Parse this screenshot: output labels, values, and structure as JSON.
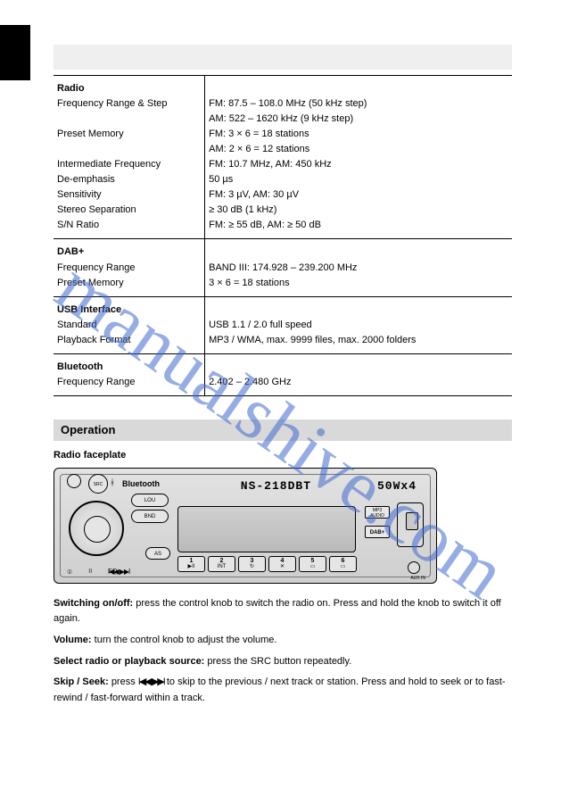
{
  "watermark": "manualshive.com",
  "spec_rows": [
    {
      "left_bold": "Radio",
      "left_rest": "\nFrequency Range & Step\n\nPreset Memory\n\nIntermediate Frequency\nDe-emphasis\nSensitivity\nStereo Separation\nS/N Ratio",
      "right": "\nFM: 87.5 – 108.0 MHz (50 kHz step)\nAM: 522 – 1620 kHz (9 kHz step)\nFM: 3 × 6 = 18 stations\nAM: 2 × 6 = 12 stations\nFM: 10.7 MHz, AM: 450 kHz\n50 µs\nFM: 3 µV, AM: 30 µV\n≥ 30 dB (1 kHz)\nFM: ≥ 55 dB, AM: ≥ 50 dB"
    },
    {
      "left_bold": "DAB+",
      "left_rest": "\nFrequency Range\nPreset Memory",
      "right": "\nBAND III: 174.928 – 239.200 MHz\n3 × 6 = 18 stations"
    },
    {
      "left_bold": "USB Interface",
      "left_rest": "\nStandard\nPlayback Format",
      "right": "\nUSB 1.1 / 2.0 full speed\nMP3 / WMA, max. 9999 files, max. 2000 folders"
    },
    {
      "left_bold": "Bluetooth",
      "left_rest": "\nFrequency Range",
      "right": "\n2.402 – 2.480 GHz"
    }
  ],
  "section_title": "Operation",
  "section_sub": "Radio faceplate",
  "radio": {
    "bt": "Bluetooth",
    "model": "NS-218DBT",
    "power": "50Wx4",
    "src": "SRC",
    "sidekeys": [
      "LOU",
      "BND"
    ],
    "as": "AS",
    "mp3": "MP3\nAUDIO",
    "dab": "DAB+",
    "aux": "AUX IN",
    "presets": [
      {
        "n": "1",
        "s": "▶II"
      },
      {
        "n": "2",
        "s": "INT"
      },
      {
        "n": "3",
        "s": "↻"
      },
      {
        "n": "4",
        "s": "✕"
      },
      {
        "n": "5",
        "s": "▭"
      },
      {
        "n": "6",
        "s": "▭"
      }
    ],
    "brow": [
      "①",
      "II",
      "EQ"
    ],
    "seek": "I◀◀  ▶▶I"
  },
  "body": {
    "p1a": "Switching on/off: ",
    "p1b": "press the control knob to switch the radio on. Press and hold the knob to switch it off again.",
    "p2a": "Volume: ",
    "p2b": "turn the control knob to adjust the volume.",
    "p3a": "Select radio or playback source: ",
    "p3b": "press the SRC button repeatedly.",
    "p4a": "Skip / Seek: ",
    "p4b": "press ",
    "p4c": " to skip to the previous / next track or station. Press and hold to seek or to fast-rewind / fast-forward within a track.",
    "skip": "I◀◀  ▶▶I"
  },
  "colors": {
    "title_bar": "#efefef",
    "section_bar": "#d9d9d9",
    "watermark": "rgba(62,104,206,0.55)"
  }
}
